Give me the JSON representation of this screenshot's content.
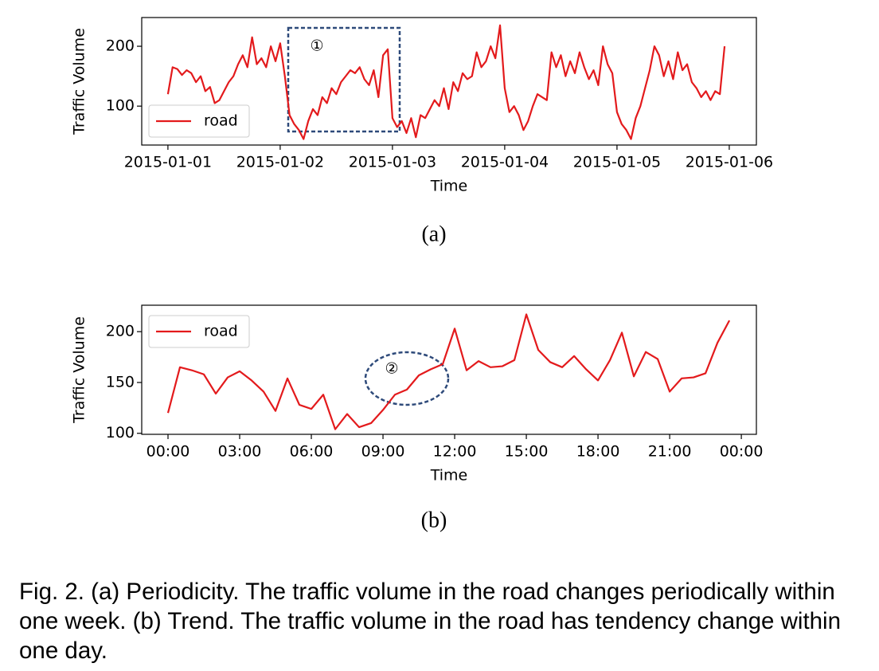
{
  "chart_data": [
    {
      "type": "line",
      "annotation": "①",
      "xlabel": "Time",
      "ylabel": "Traffic Volume",
      "legend": "lower left",
      "x": [
        0,
        1,
        2,
        3,
        4,
        5,
        6,
        7,
        8,
        9,
        10,
        11,
        12,
        13,
        14,
        15,
        16,
        17,
        18,
        19,
        20,
        21,
        22,
        23,
        24,
        25,
        26,
        27,
        28,
        29,
        30,
        31,
        32,
        33,
        34,
        35,
        36,
        37,
        38,
        39,
        40,
        41,
        42,
        43,
        44,
        45,
        46,
        47,
        48,
        49,
        50,
        51,
        52,
        53,
        54,
        55,
        56,
        57,
        58,
        59,
        60,
        61,
        62,
        63,
        64,
        65,
        66,
        67,
        68,
        69,
        70,
        71,
        72,
        73,
        74,
        75,
        76,
        77,
        78,
        79,
        80,
        81,
        82,
        83,
        84,
        85,
        86,
        87,
        88,
        89,
        90,
        91,
        92,
        93,
        94,
        95,
        96,
        97,
        98,
        99,
        100,
        101,
        102,
        103,
        104,
        105,
        106,
        107,
        108,
        109,
        110,
        111,
        112,
        113,
        114,
        115,
        116,
        117,
        118,
        119
      ],
      "series": [
        {
          "name": "road",
          "color": "#e31a1c",
          "values": [
            120,
            165,
            162,
            152,
            160,
            155,
            140,
            150,
            125,
            132,
            105,
            110,
            125,
            140,
            150,
            170,
            185,
            165,
            215,
            170,
            180,
            165,
            200,
            175,
            205,
            150,
            85,
            70,
            60,
            45,
            75,
            95,
            85,
            115,
            105,
            130,
            120,
            140,
            150,
            160,
            155,
            165,
            145,
            135,
            160,
            115,
            185,
            195,
            80,
            65,
            75,
            55,
            80,
            48,
            85,
            80,
            95,
            110,
            100,
            130,
            95,
            140,
            125,
            155,
            145,
            150,
            190,
            165,
            175,
            200,
            180,
            235,
            130,
            90,
            100,
            85,
            60,
            75,
            100,
            120,
            115,
            110,
            190,
            165,
            185,
            150,
            175,
            155,
            190,
            165,
            145,
            160,
            135,
            200,
            170,
            155,
            90,
            70,
            60,
            45,
            80,
            100,
            130,
            160,
            200,
            185,
            150,
            175,
            145,
            190,
            160,
            170,
            140,
            130,
            115,
            125,
            110,
            125,
            120,
            200
          ]
        }
      ],
      "xlim": [
        -5.6,
        125.8
      ],
      "xticks": [
        {
          "value": 0,
          "label": "2015-01-01"
        },
        {
          "value": 24,
          "label": "2015-01-02"
        },
        {
          "value": 48,
          "label": "2015-01-03"
        },
        {
          "value": 72,
          "label": "2015-01-04"
        },
        {
          "value": 96,
          "label": "2015-01-05"
        },
        {
          "value": 120,
          "label": "2015-01-06"
        }
      ],
      "ylim": [
        35,
        248
      ],
      "yticks": [
        100,
        200
      ]
    },
    {
      "type": "line",
      "annotation": "②",
      "xlabel": "Time",
      "ylabel": "Traffic Volume",
      "legend": "upper left",
      "x": [
        0,
        0.5,
        1,
        1.5,
        2,
        2.5,
        3,
        3.5,
        4,
        4.5,
        5,
        5.5,
        6,
        6.5,
        7,
        7.5,
        8,
        8.5,
        9,
        9.5,
        10,
        10.5,
        11,
        11.5,
        12,
        12.5,
        13,
        13.5,
        14,
        14.5,
        15,
        15.5,
        16,
        16.5,
        17,
        17.5,
        18,
        18.5,
        19,
        19.5,
        20,
        20.5,
        21,
        21.5,
        22,
        22.5,
        23,
        23.5
      ],
      "series": [
        {
          "name": "road",
          "color": "#e31a1c",
          "values": [
            120,
            165,
            162,
            158,
            139,
            155,
            161,
            152,
            141,
            122,
            154,
            128,
            124,
            138,
            104,
            119,
            106,
            110,
            123,
            138,
            143,
            157,
            163,
            168,
            203,
            162,
            171,
            165,
            166,
            172,
            217,
            182,
            170,
            165,
            176,
            163,
            152,
            172,
            199,
            156,
            180,
            173,
            141,
            154,
            155,
            159,
            189,
            211
          ]
        }
      ],
      "xlim": [
        -1.1,
        24.63
      ],
      "xticks": [
        {
          "value": 0,
          "label": "00:00"
        },
        {
          "value": 3,
          "label": "03:00"
        },
        {
          "value": 6,
          "label": "06:00"
        },
        {
          "value": 9,
          "label": "09:00"
        },
        {
          "value": 12,
          "label": "12:00"
        },
        {
          "value": 15,
          "label": "15:00"
        },
        {
          "value": 18,
          "label": "18:00"
        },
        {
          "value": 21,
          "label": "21:00"
        },
        {
          "value": 24,
          "label": "00:00"
        }
      ],
      "ylim": [
        99,
        226
      ],
      "yticks": [
        100,
        150,
        200
      ]
    }
  ],
  "subcaptions": [
    "(a)",
    "(b)"
  ],
  "caption": "Fig. 2. (a) Periodicity. The traffic volume in the road changes periodically within one week. (b) Trend. The traffic volume in the road has tendency change within one day."
}
